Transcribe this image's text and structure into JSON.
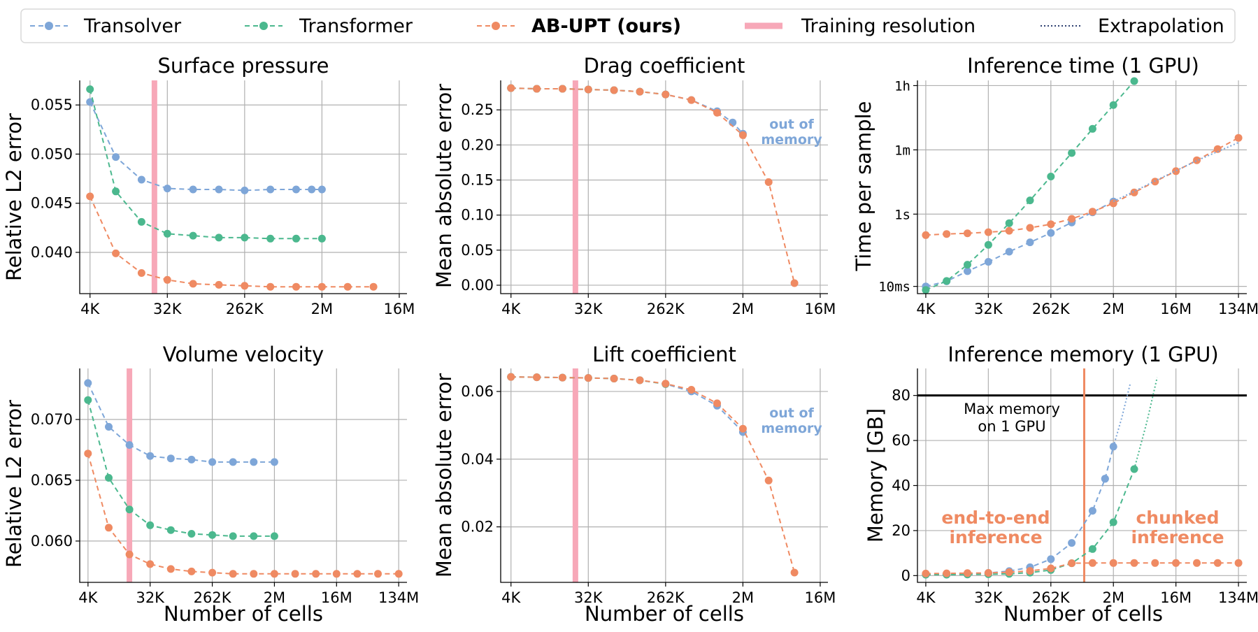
{
  "colors": {
    "transolver": "#7ea6d8",
    "transformer": "#4bb88e",
    "abupt": "#ef8a62",
    "training": "#f7a8b8",
    "extrapolation": "#7ea6d8",
    "max_line": "#000000"
  },
  "legend": {
    "transolver": "Transolver",
    "transformer": "Transformer",
    "abupt": "AB-UPT (ours)",
    "training": "Training resolution",
    "extrapolation": "Extrapolation"
  },
  "chart_data": [
    {
      "id": "surface-pressure",
      "type": "line",
      "title": "Surface pressure",
      "xlabel": "",
      "ylabel": "Relative L2 error",
      "xscale": "log2",
      "x_exp_range": [
        11.6,
        24.3
      ],
      "ylim": [
        0.0358,
        0.0575
      ],
      "xticks": [
        {
          "e": 12,
          "label": "4K"
        },
        {
          "e": 15,
          "label": "32K"
        },
        {
          "e": 18,
          "label": "262K"
        },
        {
          "e": 21,
          "label": "2M"
        },
        {
          "e": 24,
          "label": "16M"
        }
      ],
      "yticks": [
        {
          "v": 0.04,
          "label": "0.040"
        },
        {
          "v": 0.045,
          "label": "0.045"
        },
        {
          "v": 0.05,
          "label": "0.050"
        },
        {
          "v": 0.055,
          "label": "0.055"
        }
      ],
      "training_resolution_exp": 14.5,
      "series": [
        {
          "key": "transolver",
          "x_exp": [
            12,
            13,
            14,
            15,
            16,
            17,
            18,
            19,
            20,
            20.6,
            21
          ],
          "y": [
            0.0553,
            0.0497,
            0.0474,
            0.0465,
            0.0464,
            0.0464,
            0.0463,
            0.0464,
            0.0464,
            0.0464,
            0.0464
          ]
        },
        {
          "key": "transformer",
          "x_exp": [
            12,
            13,
            14,
            15,
            16,
            17,
            18,
            19,
            20,
            21
          ],
          "y": [
            0.0566,
            0.0462,
            0.0431,
            0.0419,
            0.0417,
            0.0415,
            0.0415,
            0.0414,
            0.0414,
            0.0414
          ]
        },
        {
          "key": "abupt",
          "x_exp": [
            12,
            13,
            14,
            15,
            16,
            17,
            18,
            19,
            20,
            21,
            22,
            23
          ],
          "y": [
            0.0457,
            0.0399,
            0.0379,
            0.0372,
            0.0368,
            0.0367,
            0.0366,
            0.0365,
            0.0365,
            0.0365,
            0.0365,
            0.0365
          ]
        }
      ]
    },
    {
      "id": "drag-coefficient",
      "type": "line",
      "title": "Drag coefficient",
      "xlabel": "",
      "ylabel": "Mean absolute error",
      "xscale": "log2",
      "x_exp_range": [
        11.6,
        24.3
      ],
      "ylim": [
        -0.012,
        0.292
      ],
      "xticks": [
        {
          "e": 12,
          "label": "4K"
        },
        {
          "e": 15,
          "label": "32K"
        },
        {
          "e": 18,
          "label": "262K"
        },
        {
          "e": 21,
          "label": "2M"
        },
        {
          "e": 24,
          "label": "16M"
        }
      ],
      "yticks": [
        {
          "v": 0.0,
          "label": "0.00"
        },
        {
          "v": 0.05,
          "label": "0.05"
        },
        {
          "v": 0.1,
          "label": "0.10"
        },
        {
          "v": 0.15,
          "label": "0.15"
        },
        {
          "v": 0.2,
          "label": "0.20"
        },
        {
          "v": 0.25,
          "label": "0.25"
        }
      ],
      "training_resolution_exp": 14.5,
      "annotation": [
        "out of",
        "memory"
      ],
      "series": [
        {
          "key": "transolver",
          "x_exp": [
            12,
            13,
            14,
            15,
            16,
            17,
            18,
            19,
            20,
            20.6,
            21
          ],
          "y": [
            0.281,
            0.28,
            0.28,
            0.279,
            0.278,
            0.276,
            0.272,
            0.264,
            0.248,
            0.232,
            0.216
          ]
        },
        {
          "key": "transformer",
          "x_exp": [
            12,
            13,
            14,
            15,
            16,
            17,
            18
          ],
          "y": [
            0.281,
            0.28,
            0.28,
            0.279,
            0.278,
            0.276,
            0.272
          ]
        },
        {
          "key": "abupt",
          "x_exp": [
            12,
            13,
            14,
            15,
            16,
            17,
            18,
            19,
            20,
            21,
            22,
            23
          ],
          "y": [
            0.281,
            0.28,
            0.28,
            0.279,
            0.278,
            0.276,
            0.272,
            0.264,
            0.246,
            0.214,
            0.147,
            0.003
          ]
        }
      ]
    },
    {
      "id": "inference-time",
      "type": "line",
      "title": "Inference time (1 GPU)",
      "xlabel": "",
      "ylabel": "Time per sample",
      "xscale": "log2",
      "yscale": "log10",
      "x_exp_range": [
        11.6,
        27.4
      ],
      "ylim_log10": [
        -2.2,
        3.7
      ],
      "xticks": [
        {
          "e": 12,
          "label": "4K"
        },
        {
          "e": 15,
          "label": "32K"
        },
        {
          "e": 18,
          "label": "262K"
        },
        {
          "e": 21,
          "label": "2M"
        },
        {
          "e": 24,
          "label": "16M"
        },
        {
          "e": 27,
          "label": "134M"
        }
      ],
      "yticks": [
        {
          "lv": -2,
          "label": "10ms"
        },
        {
          "lv": 0,
          "label": "1s"
        },
        {
          "lv": 1.778,
          "label": "1m"
        },
        {
          "lv": 3.556,
          "label": "1h"
        }
      ],
      "series": [
        {
          "key": "transolver",
          "x_exp": [
            12,
            13,
            14,
            15,
            16,
            17,
            18,
            19,
            20,
            21
          ],
          "y_log10": [
            -2.0,
            -1.86,
            -1.58,
            -1.32,
            -1.04,
            -0.78,
            -0.52,
            -0.23,
            0.05,
            0.35
          ]
        },
        {
          "key": "transformer",
          "x_exp": [
            12,
            13,
            14,
            15,
            16,
            17,
            18,
            19,
            20,
            21,
            22
          ],
          "y_log10": [
            -2.1,
            -1.85,
            -1.4,
            -0.85,
            -0.25,
            0.38,
            1.04,
            1.69,
            2.36,
            3.02,
            3.68
          ]
        },
        {
          "key": "abupt",
          "x_exp": [
            12,
            13,
            14,
            15,
            16,
            17,
            18,
            19,
            20,
            21,
            22,
            23,
            24,
            25,
            26,
            27
          ],
          "y_log10": [
            -0.58,
            -0.55,
            -0.53,
            -0.5,
            -0.46,
            -0.38,
            -0.28,
            -0.13,
            0.07,
            0.3,
            0.6,
            0.9,
            1.19,
            1.49,
            1.8,
            2.11
          ]
        },
        {
          "key": "extrapolation",
          "style": "dotted",
          "x_exp": [
            21,
            22,
            23,
            24,
            25,
            26,
            27
          ],
          "y_log10": [
            0.35,
            0.63,
            0.92,
            1.2,
            1.48,
            1.73,
            1.98
          ]
        }
      ]
    },
    {
      "id": "volume-velocity",
      "type": "line",
      "title": "Volume velocity",
      "xlabel": "Number of cells",
      "ylabel": "Relative L2 error",
      "xscale": "log2",
      "x_exp_range": [
        11.6,
        27.4
      ],
      "ylim": [
        0.0566,
        0.0742
      ],
      "xticks": [
        {
          "e": 12,
          "label": "4K"
        },
        {
          "e": 15,
          "label": "32K"
        },
        {
          "e": 18,
          "label": "262K"
        },
        {
          "e": 21,
          "label": "2M"
        },
        {
          "e": 24,
          "label": "16M"
        },
        {
          "e": 27,
          "label": "134M"
        }
      ],
      "yticks": [
        {
          "v": 0.06,
          "label": "0.060"
        },
        {
          "v": 0.065,
          "label": "0.065"
        },
        {
          "v": 0.07,
          "label": "0.070"
        }
      ],
      "training_resolution_exp": 14.0,
      "series": [
        {
          "key": "transolver",
          "x_exp": [
            12,
            13,
            14,
            15,
            16,
            17,
            18,
            19,
            20,
            21
          ],
          "y": [
            0.073,
            0.0694,
            0.0679,
            0.067,
            0.0668,
            0.0667,
            0.0665,
            0.0665,
            0.0665,
            0.0665
          ]
        },
        {
          "key": "transformer",
          "x_exp": [
            12,
            13,
            14,
            15,
            16,
            17,
            18,
            19,
            20,
            21
          ],
          "y": [
            0.0716,
            0.0652,
            0.0626,
            0.0613,
            0.0609,
            0.0606,
            0.0605,
            0.0604,
            0.0604,
            0.0604
          ]
        },
        {
          "key": "abupt",
          "x_exp": [
            12,
            13,
            14,
            15,
            16,
            17,
            18,
            19,
            20,
            21,
            22,
            23,
            24,
            25,
            26,
            27
          ],
          "y": [
            0.0672,
            0.0611,
            0.0589,
            0.0581,
            0.0577,
            0.0575,
            0.0574,
            0.0573,
            0.0573,
            0.0573,
            0.0573,
            0.0573,
            0.0573,
            0.0573,
            0.0573,
            0.0573
          ]
        }
      ]
    },
    {
      "id": "lift-coefficient",
      "type": "line",
      "title": "Lift coefficient",
      "xlabel": "Number of cells",
      "ylabel": "Mean absolute error",
      "xscale": "log2",
      "x_exp_range": [
        11.6,
        24.3
      ],
      "ylim": [
        0.0036,
        0.0668
      ],
      "xticks": [
        {
          "e": 12,
          "label": "4K"
        },
        {
          "e": 15,
          "label": "32K"
        },
        {
          "e": 18,
          "label": "262K"
        },
        {
          "e": 21,
          "label": "2M"
        },
        {
          "e": 24,
          "label": "16M"
        }
      ],
      "yticks": [
        {
          "v": 0.02,
          "label": "0.02"
        },
        {
          "v": 0.04,
          "label": "0.04"
        },
        {
          "v": 0.06,
          "label": "0.06"
        }
      ],
      "training_resolution_exp": 14.5,
      "annotation": [
        "out of",
        "memory"
      ],
      "series": [
        {
          "key": "transolver",
          "x_exp": [
            12,
            13,
            14,
            15,
            16,
            17,
            18,
            19,
            20,
            21
          ],
          "y": [
            0.0643,
            0.0642,
            0.0641,
            0.064,
            0.0638,
            0.0633,
            0.0622,
            0.06,
            0.0558,
            0.048
          ]
        },
        {
          "key": "transformer",
          "x_exp": [
            12,
            13,
            14,
            15,
            16,
            17,
            18
          ],
          "y": [
            0.0643,
            0.0642,
            0.0641,
            0.064,
            0.0638,
            0.0633,
            0.0622
          ]
        },
        {
          "key": "abupt",
          "x_exp": [
            12,
            13,
            14,
            15,
            16,
            17,
            18,
            19,
            20,
            21,
            22,
            23
          ],
          "y": [
            0.0643,
            0.0642,
            0.0641,
            0.064,
            0.0638,
            0.0633,
            0.0623,
            0.0605,
            0.0565,
            0.049,
            0.0337,
            0.0065
          ]
        }
      ]
    },
    {
      "id": "inference-memory",
      "type": "line",
      "title": "Inference memory (1 GPU)",
      "xlabel": "Number of cells",
      "ylabel": "Memory [GB]",
      "xscale": "log2",
      "x_exp_range": [
        11.6,
        27.4
      ],
      "ylim": [
        -3,
        92
      ],
      "xticks": [
        {
          "e": 12,
          "label": "4K"
        },
        {
          "e": 15,
          "label": "32K"
        },
        {
          "e": 18,
          "label": "262K"
        },
        {
          "e": 21,
          "label": "2M"
        },
        {
          "e": 24,
          "label": "16M"
        },
        {
          "e": 27,
          "label": "134M"
        }
      ],
      "yticks": [
        {
          "v": 0,
          "label": "0"
        },
        {
          "v": 20,
          "label": "20"
        },
        {
          "v": 40,
          "label": "40"
        },
        {
          "v": 60,
          "label": "60"
        },
        {
          "v": 80,
          "label": "80"
        }
      ],
      "max_memory": 80,
      "max_memory_label": [
        "Max memory",
        "on 1 GPU"
      ],
      "chunk_boundary_exp": 19.6,
      "region_labels": {
        "left": [
          "end-to-end",
          "inference"
        ],
        "right": [
          "chunked",
          "inference"
        ]
      },
      "series": [
        {
          "key": "transolver",
          "x_exp": [
            12,
            13,
            14,
            15,
            16,
            17,
            18,
            19,
            20,
            20.6
          ],
          "y": [
            0.5,
            0.6,
            0.8,
            1.2,
            2.0,
            3.7,
            7.3,
            14.5,
            28.8,
            43.0
          ]
        },
        {
          "key": "transolver",
          "x_exp": [
            20.6,
            21
          ],
          "y": [
            43.0,
            57.3
          ]
        },
        {
          "key": "extrapolation",
          "color_key": "transolver",
          "style": "dotted",
          "x_exp": [
            21,
            21.4,
            21.8
          ],
          "y": [
            57.3,
            70.0,
            85.0
          ]
        },
        {
          "key": "transformer",
          "x_exp": [
            12,
            13,
            14,
            15,
            16,
            17,
            18,
            19,
            20,
            21,
            22
          ],
          "y": [
            0.4,
            0.4,
            0.5,
            0.6,
            0.8,
            1.3,
            2.5,
            5.5,
            11.8,
            23.7,
            47.3
          ]
        },
        {
          "key": "extrapolation",
          "color_key": "transformer",
          "style": "dotted",
          "x_exp": [
            22,
            22.6,
            23.1
          ],
          "y": [
            47.3,
            68.0,
            88.0
          ]
        },
        {
          "key": "abupt",
          "x_exp": [
            12,
            13,
            14,
            15,
            16,
            17,
            18,
            19,
            20,
            21,
            22,
            23,
            24,
            25,
            26,
            27
          ],
          "y": [
            0.9,
            1.0,
            1.1,
            1.2,
            1.5,
            2.1,
            3.2,
            5.5,
            5.6,
            5.6,
            5.6,
            5.6,
            5.6,
            5.6,
            5.6,
            5.6
          ]
        }
      ]
    }
  ]
}
